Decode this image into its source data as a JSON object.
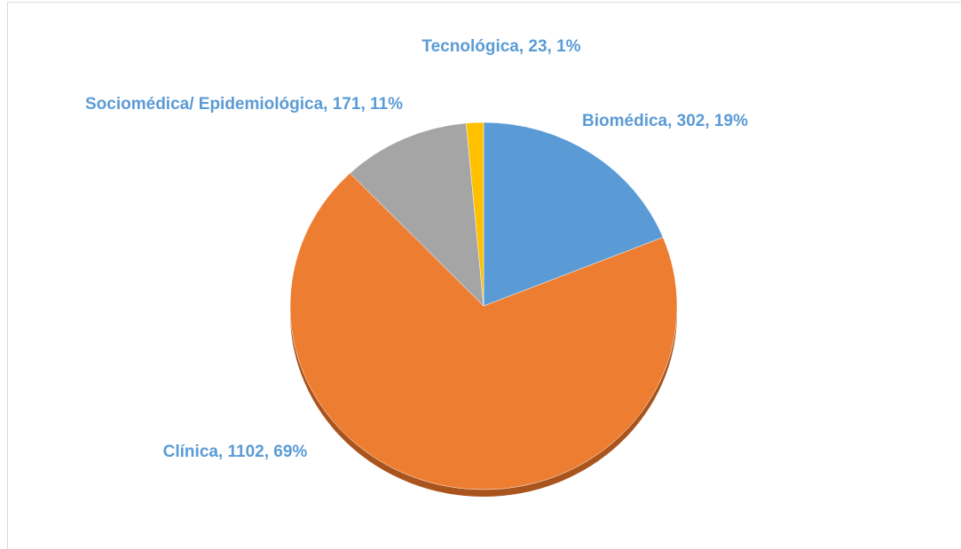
{
  "chart_data": {
    "type": "pie",
    "categories": [
      "Biomédica",
      "Clínica",
      "Sociomédica/ Epidemiológica",
      "Tecnológica"
    ],
    "values": [
      302,
      1102,
      171,
      23
    ],
    "value_labels": [
      "Biomédica, 302, 19%",
      "Clínica, 1102, 69%",
      "Sociomédica/ Epidemiológica, 171, 11%",
      "Tecnológica, 23, 1%"
    ],
    "colors": [
      "#5b9bd5",
      "#ed7d31",
      "#a5a5a5",
      "#ffc000"
    ]
  }
}
